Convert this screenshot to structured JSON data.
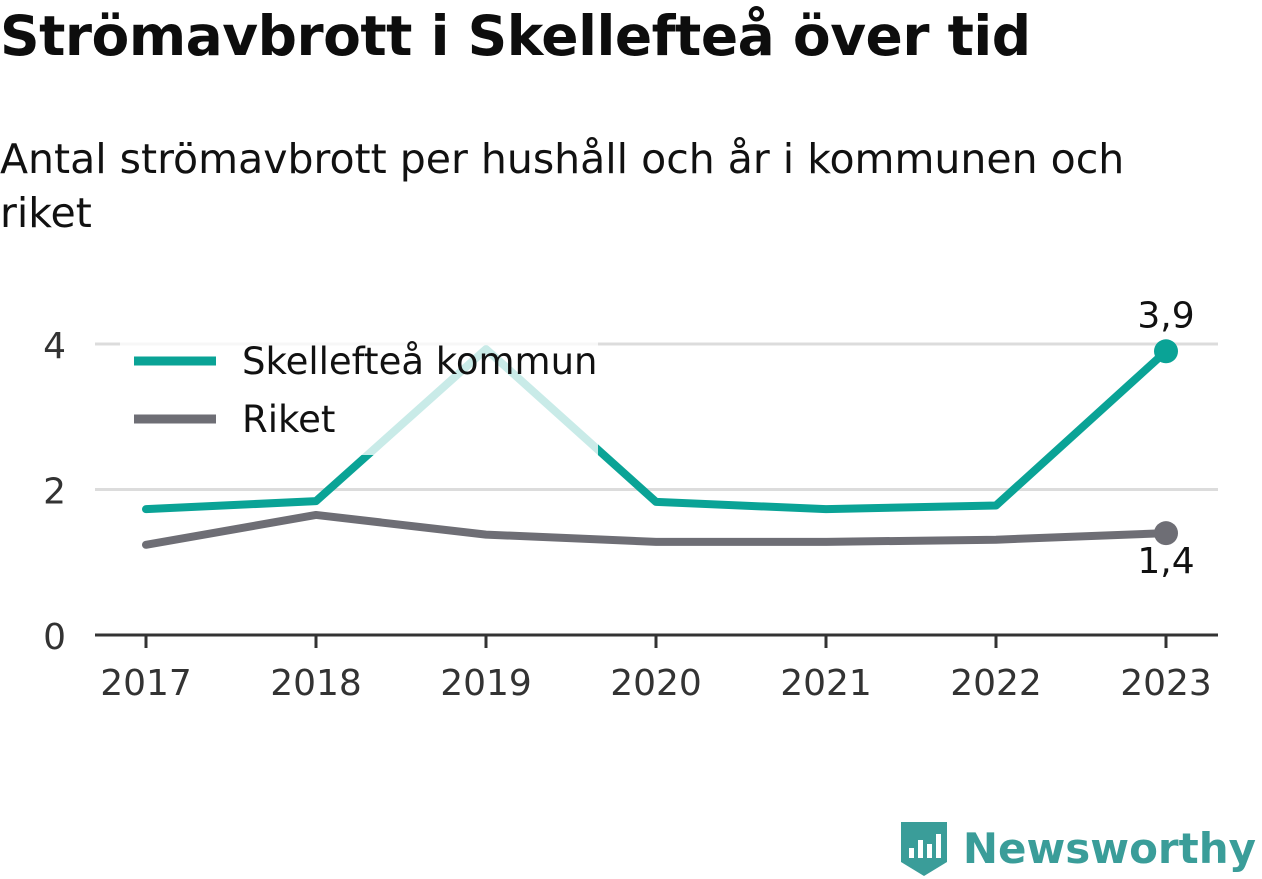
{
  "title": "Strömavbrott i Skellefteå över tid",
  "subtitle": "Antal strömavbrott per hushåll och år i kommunen och riket",
  "brand": {
    "name": "Newsworthy",
    "icon": "bar-chart-flag-icon",
    "color": "#3a9d99"
  },
  "chart_data": {
    "type": "line",
    "categories": [
      "2017",
      "2018",
      "2019",
      "2020",
      "2021",
      "2022",
      "2023"
    ],
    "series": [
      {
        "name": "Skellefteå kommun",
        "color": "#0aa396",
        "values": [
          1.73,
          1.84,
          3.93,
          1.83,
          1.73,
          1.78,
          3.9
        ]
      },
      {
        "name": "Riket",
        "color": "#6e6e75",
        "values": [
          1.24,
          1.65,
          1.38,
          1.28,
          1.28,
          1.31,
          1.4
        ]
      }
    ],
    "end_labels": [
      "3,9",
      "1,4"
    ],
    "yticks": [
      0,
      2,
      4
    ],
    "ytick_labels": [
      "0",
      "2",
      "4"
    ],
    "ylim": [
      0,
      4
    ],
    "grid": true,
    "legend": "top-left"
  }
}
